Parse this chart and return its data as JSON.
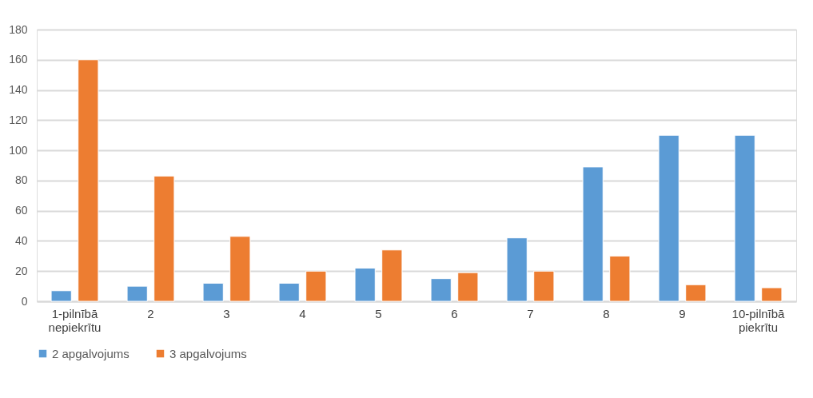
{
  "chart_data": {
    "type": "bar",
    "categories": [
      "1-pilnībā nepiekrītu",
      "2",
      "3",
      "4",
      "5",
      "6",
      "7",
      "8",
      "9",
      "10-pilnībā piekrītu"
    ],
    "series": [
      {
        "name": "2 apgalvojums",
        "color": "#5b9bd5",
        "values": [
          7,
          10,
          12,
          12,
          22,
          15,
          42,
          89,
          110,
          110
        ]
      },
      {
        "name": "3 apgalvojums",
        "color": "#ed7d31",
        "values": [
          160,
          83,
          43,
          20,
          34,
          19,
          20,
          30,
          11,
          9
        ]
      }
    ],
    "ylim": [
      0,
      180
    ],
    "yticks": [
      0,
      20,
      40,
      60,
      80,
      100,
      120,
      140,
      160,
      180
    ],
    "grid": "y",
    "legend": "bottom"
  }
}
